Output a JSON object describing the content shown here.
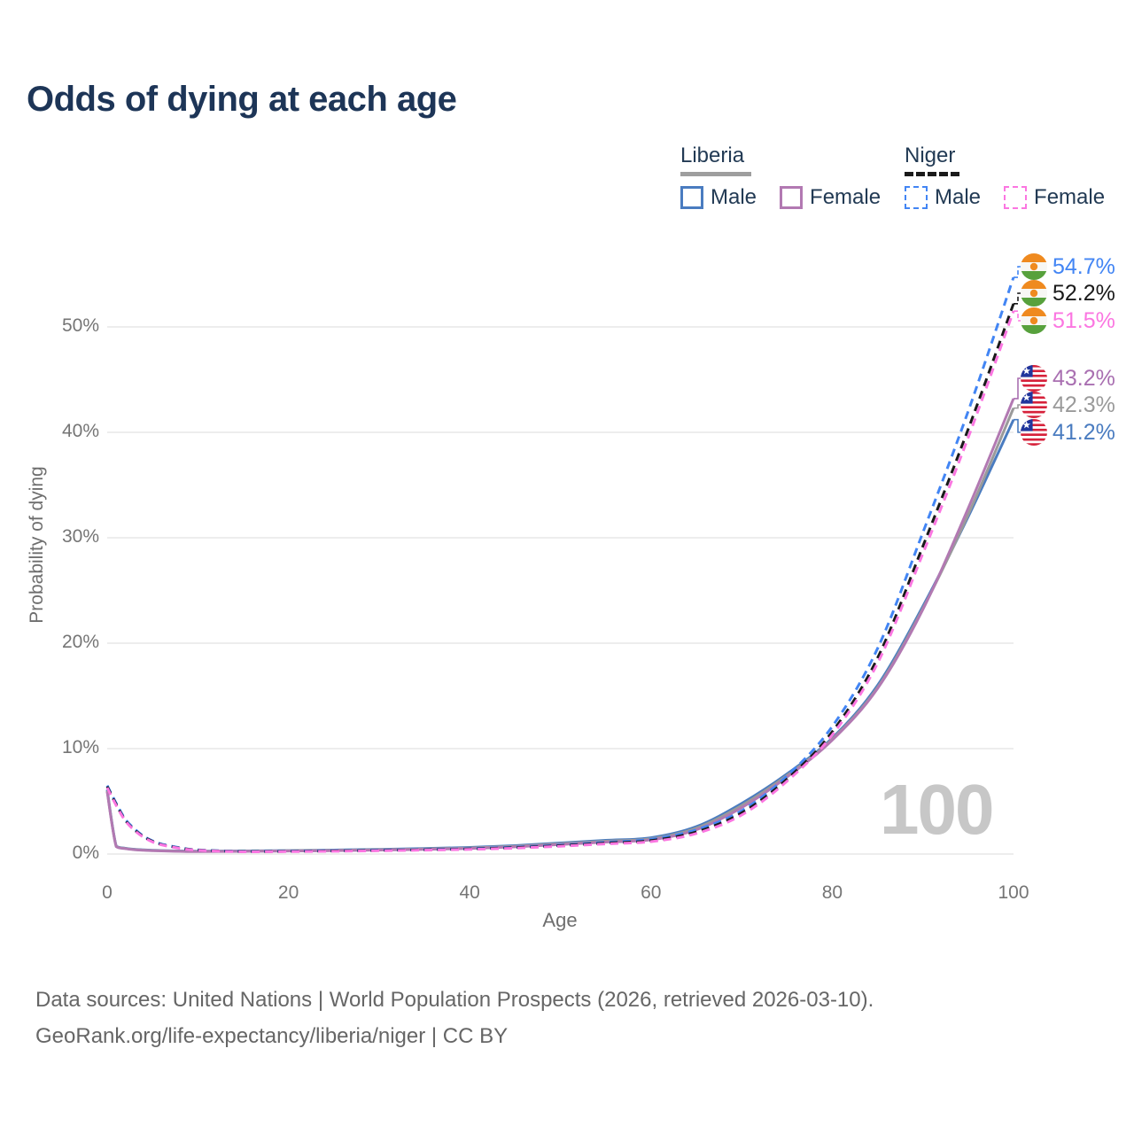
{
  "title": "Odds of dying at each age",
  "legend": {
    "groups": [
      {
        "name": "Liberia",
        "line_style": "solid",
        "underline_color": "#9e9e9e",
        "items": [
          {
            "label": "Male",
            "color": "#4a7cc0"
          },
          {
            "label": "Female",
            "color": "#b279b2"
          }
        ]
      },
      {
        "name": "Niger",
        "line_style": "dashed",
        "underline_color": "#1a1a1a",
        "items": [
          {
            "label": "Male",
            "color": "#4285f4"
          },
          {
            "label": "Female",
            "color": "#fb76e1"
          }
        ]
      }
    ]
  },
  "y_axis": {
    "title": "Probability of dying",
    "tick_labels": [
      "0%",
      "10%",
      "20%",
      "30%",
      "40%",
      "50%"
    ],
    "tick_values": [
      0,
      10,
      20,
      30,
      40,
      50
    ]
  },
  "x_axis": {
    "title": "Age",
    "tick_labels": [
      "0",
      "20",
      "40",
      "60",
      "80",
      "100"
    ],
    "tick_values": [
      0,
      20,
      40,
      60,
      80,
      100
    ]
  },
  "watermark": "100",
  "end_labels": [
    {
      "value": "54.7%",
      "end_value": 54.7,
      "flag": "niger-flag-icon",
      "color": "#4285f4",
      "series": "Niger Male"
    },
    {
      "value": "52.2%",
      "end_value": 52.2,
      "flag": "niger-flag-icon",
      "color": "#1a1a1a",
      "series": "Niger Both sexes"
    },
    {
      "value": "51.5%",
      "end_value": 51.5,
      "flag": "niger-flag-icon",
      "color": "#fb76e1",
      "series": "Niger Female"
    },
    {
      "value": "43.2%",
      "end_value": 43.2,
      "flag": "liberia-flag-icon",
      "color": "#a96fb1",
      "series": "Liberia Female"
    },
    {
      "value": "42.3%",
      "end_value": 42.3,
      "flag": "liberia-flag-icon",
      "color": "#9a9a9a",
      "series": "Liberia Both sexes"
    },
    {
      "value": "41.2%",
      "end_value": 41.2,
      "flag": "liberia-flag-icon",
      "color": "#4a7cc0",
      "series": "Liberia Male"
    }
  ],
  "footer": {
    "line1": "Data sources: United Nations | World Population Prospects (2026, retrieved 2026-03-10).",
    "line2": "GeoRank.org/life-expectancy/liberia/niger | CC BY"
  },
  "chart_data": {
    "type": "line",
    "title": "Odds of dying at each age",
    "xlabel": "Age",
    "ylabel": "Probability of dying",
    "xlim": [
      0,
      100
    ],
    "ylim": [
      0,
      55
    ],
    "y_unit": "%",
    "grid": "horizontal",
    "legend_position": "top-right",
    "x": [
      0,
      1,
      2,
      3,
      4,
      5,
      6,
      8,
      10,
      15,
      20,
      25,
      30,
      35,
      40,
      45,
      50,
      55,
      60,
      65,
      70,
      75,
      80,
      85,
      90,
      95,
      100
    ],
    "series": [
      {
        "name": "Liberia Male",
        "country": "Liberia",
        "sex": "Male",
        "color": "#4a7cc0",
        "dash": "solid",
        "end_label": "41.2%",
        "values": [
          6.1,
          0.75,
          0.55,
          0.45,
          0.4,
          0.36,
          0.33,
          0.29,
          0.27,
          0.29,
          0.33,
          0.38,
          0.44,
          0.52,
          0.63,
          0.8,
          1.05,
          1.3,
          1.55,
          2.6,
          4.8,
          7.6,
          11.0,
          16.0,
          23.5,
          32.0,
          41.2
        ]
      },
      {
        "name": "Liberia Both sexes",
        "country": "Liberia",
        "sex": "Both",
        "color": "#9a9a9a",
        "dash": "solid",
        "end_label": "42.3%",
        "values": [
          6.0,
          0.72,
          0.53,
          0.43,
          0.38,
          0.34,
          0.31,
          0.27,
          0.25,
          0.27,
          0.31,
          0.35,
          0.41,
          0.48,
          0.58,
          0.74,
          0.97,
          1.22,
          1.45,
          2.45,
          4.6,
          7.45,
          10.9,
          15.8,
          23.3,
          32.2,
          42.3
        ]
      },
      {
        "name": "Liberia Female",
        "country": "Liberia",
        "sex": "Female",
        "color": "#b279b2",
        "dash": "solid",
        "end_label": "43.2%",
        "values": [
          5.9,
          0.7,
          0.51,
          0.41,
          0.36,
          0.32,
          0.29,
          0.25,
          0.23,
          0.25,
          0.28,
          0.32,
          0.38,
          0.44,
          0.53,
          0.68,
          0.9,
          1.13,
          1.35,
          2.3,
          4.4,
          7.3,
          10.8,
          15.7,
          23.2,
          32.8,
          43.2
        ]
      },
      {
        "name": "Niger Male",
        "country": "Niger",
        "sex": "Male",
        "color": "#4285f4",
        "dash": "dashed",
        "end_label": "54.7%",
        "values": [
          6.5,
          4.8,
          3.3,
          2.4,
          1.7,
          1.25,
          0.95,
          0.6,
          0.4,
          0.25,
          0.28,
          0.32,
          0.37,
          0.43,
          0.52,
          0.66,
          0.86,
          1.12,
          1.4,
          2.3,
          4.1,
          7.4,
          12.1,
          19.5,
          30.5,
          42.0,
          54.7
        ]
      },
      {
        "name": "Niger Both sexes",
        "country": "Niger",
        "sex": "Both",
        "color": "#1a1a1a",
        "dash": "dashed",
        "end_label": "52.2%",
        "values": [
          6.4,
          4.7,
          3.2,
          2.3,
          1.65,
          1.2,
          0.9,
          0.57,
          0.38,
          0.23,
          0.25,
          0.29,
          0.34,
          0.4,
          0.48,
          0.61,
          0.8,
          1.04,
          1.28,
          2.1,
          3.9,
          7.1,
          11.6,
          18.6,
          29.2,
          40.3,
          52.2
        ]
      },
      {
        "name": "Niger Female",
        "country": "Niger",
        "sex": "Female",
        "color": "#fb76e1",
        "dash": "dashed",
        "end_label": "51.5%",
        "values": [
          6.3,
          4.6,
          3.15,
          2.25,
          1.6,
          1.15,
          0.87,
          0.54,
          0.36,
          0.21,
          0.23,
          0.26,
          0.31,
          0.37,
          0.44,
          0.56,
          0.74,
          0.96,
          1.18,
          1.95,
          3.7,
          6.9,
          11.3,
          18.1,
          28.5,
          39.5,
          51.5
        ]
      }
    ]
  }
}
